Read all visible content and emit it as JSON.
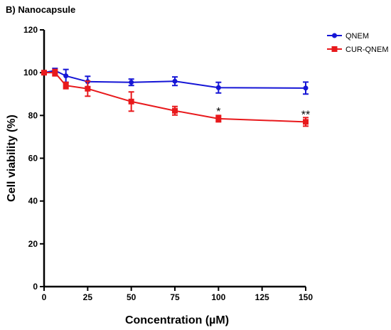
{
  "panel_title": "B) Nanocapsule",
  "chart_data": {
    "type": "line",
    "title": "",
    "xlabel": "Concentration (µM)",
    "ylabel": "Cell viability (%)",
    "xlim": [
      0,
      150
    ],
    "ylim": [
      0,
      120
    ],
    "xticks": [
      0,
      25,
      50,
      75,
      100,
      125,
      150
    ],
    "yticks": [
      0,
      20,
      40,
      60,
      80,
      100,
      120
    ],
    "grid": false,
    "legend_position": "top-right",
    "series": [
      {
        "name": "QNEM",
        "color": "#1515d6",
        "marker": "circle",
        "x": [
          0,
          6.25,
          12.5,
          25,
          50,
          75,
          100,
          150
        ],
        "y": [
          100,
          101,
          98.5,
          95.8,
          95.5,
          96,
          93,
          92.8
        ],
        "err": [
          0.8,
          1,
          3,
          2.5,
          1.5,
          2,
          2.5,
          2.8
        ]
      },
      {
        "name": "CUR-QNEM",
        "color": "#e8191c",
        "marker": "square",
        "x": [
          0,
          6.25,
          12.5,
          25,
          50,
          75,
          100,
          150
        ],
        "y": [
          100,
          100,
          94,
          92.5,
          86.5,
          82.2,
          78.5,
          77
        ],
        "err": [
          0.8,
          1.5,
          1.5,
          3.5,
          4.5,
          2,
          1.5,
          2
        ]
      }
    ],
    "annotations": [
      {
        "text": "*",
        "x": 100,
        "y": 78.5
      },
      {
        "text": "**",
        "x": 150,
        "y": 77
      }
    ]
  }
}
